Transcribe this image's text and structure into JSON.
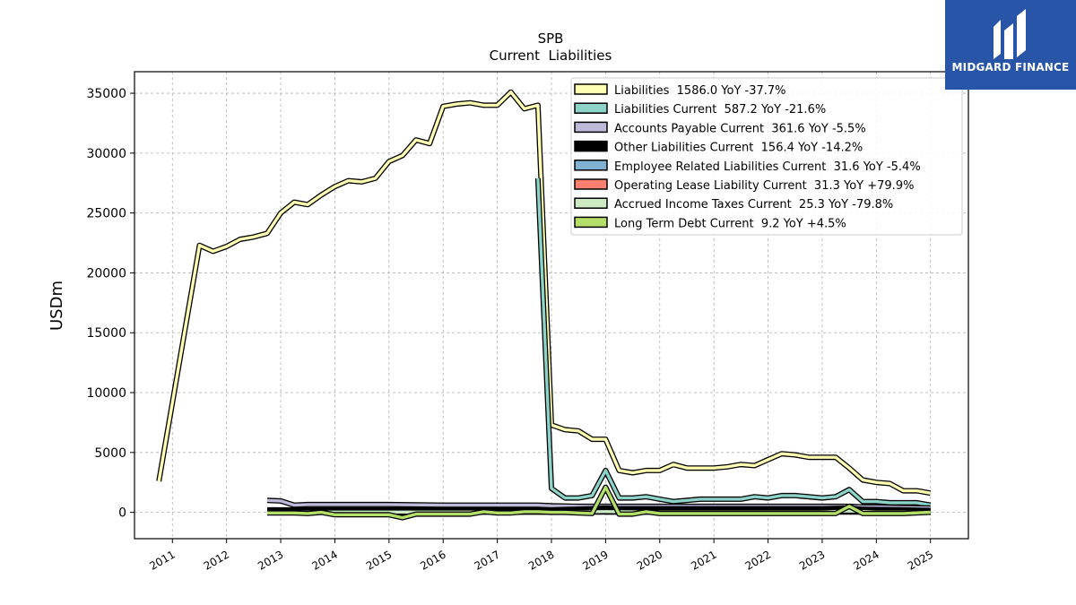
{
  "chart_data": {
    "type": "line",
    "title": "SPB",
    "subtitle": "Current  Liabilities",
    "ylabel": "USDm",
    "xlabel": "",
    "ylim": [
      -2200,
      36800
    ],
    "xlim": [
      2010.3,
      2025.7
    ],
    "grid": true,
    "legend_position": "top-right",
    "yticks": [
      0,
      5000,
      10000,
      15000,
      20000,
      25000,
      30000,
      35000
    ],
    "xticks": [
      "2011",
      "2012",
      "2013",
      "2014",
      "2015",
      "2016",
      "2017",
      "2018",
      "2019",
      "2020",
      "2021",
      "2022",
      "2023",
      "2024",
      "2025"
    ],
    "series": [
      {
        "name": "Liabilities",
        "legend": "Liabilities  1586.0 YoY -37.7%",
        "color": "#ffffb3",
        "x": [
          2010.75,
          2011.5,
          2011.75,
          2012.0,
          2012.25,
          2012.5,
          2012.75,
          2013.0,
          2013.25,
          2013.5,
          2013.75,
          2014.0,
          2014.25,
          2014.5,
          2014.75,
          2015.0,
          2015.25,
          2015.5,
          2015.75,
          2016.0,
          2016.25,
          2016.5,
          2016.75,
          2017.0,
          2017.25,
          2017.5,
          2017.75,
          2018.0,
          2018.25,
          2018.5,
          2018.75,
          2019.0,
          2019.25,
          2019.5,
          2019.75,
          2020.0,
          2020.25,
          2020.5,
          2020.75,
          2021.0,
          2021.25,
          2021.5,
          2021.75,
          2022.0,
          2022.25,
          2022.5,
          2022.75,
          2023.0,
          2023.25,
          2023.5,
          2023.75,
          2024.0,
          2024.25,
          2024.5,
          2024.75,
          2025.0
        ],
        "values": [
          2600,
          22300,
          21800,
          22200,
          22800,
          23000,
          23300,
          25000,
          25900,
          25700,
          26500,
          27200,
          27700,
          27600,
          27900,
          29300,
          29800,
          31100,
          30800,
          33900,
          34100,
          34200,
          34000,
          34000,
          35100,
          33700,
          34000,
          7300,
          6900,
          6800,
          6100,
          6100,
          3500,
          3300,
          3500,
          3500,
          4000,
          3700,
          3700,
          3700,
          3800,
          4000,
          3900,
          4400,
          4900,
          4800,
          4600,
          4600,
          4600,
          3700,
          2700,
          2500,
          2400,
          1800,
          1800,
          1600
        ]
      },
      {
        "name": "Liabilities Current",
        "legend": "Liabilities Current  587.2 YoY -21.6%",
        "color": "#8dd3c7",
        "x": [
          2017.75,
          2018.0,
          2018.25,
          2018.5,
          2018.75,
          2019.0,
          2019.25,
          2019.5,
          2019.75,
          2020.0,
          2020.25,
          2020.5,
          2020.75,
          2021.0,
          2021.25,
          2021.5,
          2021.75,
          2022.0,
          2022.25,
          2022.5,
          2022.75,
          2023.0,
          2023.25,
          2023.5,
          2023.75,
          2024.0,
          2024.25,
          2024.5,
          2024.75,
          2025.0
        ],
        "values": [
          27900,
          2000,
          1200,
          1200,
          1400,
          3500,
          1200,
          1200,
          1300,
          1100,
          900,
          1000,
          1100,
          1100,
          1100,
          1100,
          1300,
          1200,
          1400,
          1400,
          1300,
          1200,
          1300,
          1900,
          900,
          900,
          800,
          800,
          800,
          600
        ]
      },
      {
        "name": "Accounts Payable Current",
        "legend": "Accounts Payable Current  361.6 YoY -5.5%",
        "color": "#bebada",
        "x": [
          2012.75,
          2013.0,
          2013.25,
          2013.5,
          2014.0,
          2015.0,
          2016.0,
          2017.0,
          2017.75,
          2018.0,
          2018.5,
          2019.0,
          2019.25,
          2020.0,
          2021.0,
          2022.0,
          2023.0,
          2023.5,
          2023.75,
          2024.0,
          2024.5,
          2025.0
        ],
        "values": [
          1000,
          950,
          600,
          650,
          650,
          650,
          600,
          600,
          600,
          550,
          500,
          500,
          500,
          500,
          500,
          500,
          500,
          500,
          450,
          450,
          400,
          360
        ]
      },
      {
        "name": "Other Liabilities Current",
        "legend": "Other Liabilities Current  156.4 YoY -14.2%",
        "color": "#000000",
        "x": [
          2012.75,
          2013.5,
          2014.5,
          2015.5,
          2016.5,
          2017.5,
          2018.0,
          2018.75,
          2019.0,
          2019.25,
          2020.0,
          2021.0,
          2022.0,
          2023.0,
          2023.5,
          2023.75,
          2024.5,
          2025.0
        ],
        "values": [
          200,
          200,
          200,
          200,
          200,
          200,
          200,
          300,
          350,
          300,
          300,
          300,
          300,
          300,
          350,
          250,
          200,
          160
        ]
      },
      {
        "name": "Employee Related Liabilities Current",
        "legend": "Employee Related Liabilities Current  31.6 YoY -5.4%",
        "color": "#80b1d3",
        "x": [
          2012.75,
          2014.0,
          2016.0,
          2018.0,
          2020.0,
          2022.0,
          2024.0,
          2025.0
        ],
        "values": [
          30,
          30,
          30,
          30,
          30,
          30,
          30,
          32
        ]
      },
      {
        "name": "Operating Lease Liability Current",
        "legend": "Operating Lease Liability Current  31.3 YoY +79.9%",
        "color": "#fb8072",
        "x": [
          2019.0,
          2020.0,
          2021.0,
          2022.0,
          2023.0,
          2023.5,
          2023.75,
          2024.0,
          2025.0
        ],
        "values": [
          40,
          40,
          40,
          40,
          40,
          80,
          30,
          20,
          31
        ]
      },
      {
        "name": "Accrued Income Taxes Current",
        "legend": "Accrued Income Taxes Current  25.3 YoY -79.8%",
        "color": "#ccebc5",
        "x": [
          2012.75,
          2014.0,
          2016.0,
          2018.0,
          2019.0,
          2020.0,
          2022.0,
          2023.0,
          2023.5,
          2024.0,
          2025.0
        ],
        "values": [
          20,
          20,
          20,
          20,
          60,
          20,
          20,
          20,
          120,
          20,
          25
        ]
      },
      {
        "name": "Long Term Debt Current",
        "legend": "Long Term Debt Current  9.2 YoY +4.5%",
        "color": "#b3de69",
        "x": [
          2012.75,
          2013.25,
          2013.5,
          2013.75,
          2014.0,
          2014.5,
          2015.0,
          2015.25,
          2015.5,
          2016.0,
          2016.5,
          2016.75,
          2017.0,
          2017.25,
          2017.5,
          2017.75,
          2018.0,
          2018.25,
          2018.5,
          2018.75,
          2019.0,
          2019.25,
          2019.5,
          2019.75,
          2020.0,
          2021.0,
          2022.0,
          2023.0,
          2023.25,
          2023.5,
          2023.75,
          2024.0,
          2024.5,
          2025.0
        ],
        "values": [
          -50,
          -50,
          -100,
          0,
          -200,
          -200,
          -200,
          -450,
          -150,
          -150,
          -150,
          50,
          -50,
          -50,
          50,
          50,
          0,
          0,
          -50,
          -100,
          2100,
          -150,
          -150,
          50,
          -100,
          -100,
          -100,
          -100,
          -100,
          500,
          -100,
          -100,
          -100,
          9
        ]
      }
    ]
  },
  "logo": {
    "text": "MIDGARD FINANCE"
  }
}
